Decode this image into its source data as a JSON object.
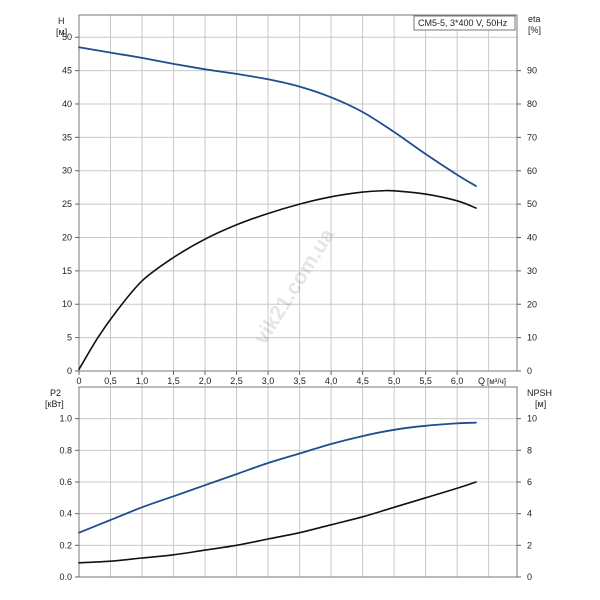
{
  "chart_data": [
    {
      "type": "line",
      "title": "CM5-5, 3*400 V, 50Hz",
      "left_axis": {
        "label": "H",
        "unit": "[м]",
        "range": [
          0,
          53.33
        ],
        "ticks": [
          "0",
          "5",
          "10",
          "15",
          "20",
          "25",
          "30",
          "35",
          "40",
          "45",
          "50"
        ]
      },
      "right_axis": {
        "label": "eta",
        "unit": "[%]",
        "range": [
          0,
          106.67
        ],
        "ticks": [
          "0",
          "10",
          "20",
          "30",
          "40",
          "50",
          "60",
          "70",
          "80",
          "90"
        ]
      },
      "x_axis": {
        "label": "Q",
        "unit": "[м³/ч]",
        "range": [
          0,
          6.95
        ],
        "ticks": [
          "0",
          "0,5",
          "1,0",
          "1,5",
          "2,0",
          "2,5",
          "3,0",
          "3,5",
          "4,0",
          "4,5",
          "5,0",
          "5,5",
          "6,0"
        ]
      },
      "grid": true,
      "watermark": "vik21.com.ua",
      "series": [
        {
          "axis": "left",
          "color": "#1f4e8c",
          "points": [
            [
              0,
              48.5
            ],
            [
              0.5,
              47.7
            ],
            [
              1.0,
              46.9
            ],
            [
              1.5,
              46.0
            ],
            [
              2.0,
              45.2
            ],
            [
              2.5,
              44.5
            ],
            [
              3.0,
              43.7
            ],
            [
              3.5,
              42.6
            ],
            [
              4.0,
              41.0
            ],
            [
              4.5,
              38.8
            ],
            [
              5.0,
              35.8
            ],
            [
              5.5,
              32.5
            ],
            [
              6.0,
              29.4
            ],
            [
              6.3,
              27.7
            ]
          ]
        },
        {
          "axis": "right",
          "color": "#111111",
          "points": [
            [
              0,
              0.5
            ],
            [
              0.3,
              10
            ],
            [
              0.6,
              18
            ],
            [
              1.0,
              27
            ],
            [
              1.5,
              34
            ],
            [
              2.0,
              39.5
            ],
            [
              2.5,
              43.8
            ],
            [
              3.0,
              47.2
            ],
            [
              3.5,
              50
            ],
            [
              4.0,
              52.2
            ],
            [
              4.5,
              53.6
            ],
            [
              4.8,
              54
            ],
            [
              5.0,
              54
            ],
            [
              5.5,
              53
            ],
            [
              6.0,
              51
            ],
            [
              6.3,
              48.8
            ]
          ]
        }
      ]
    },
    {
      "type": "line",
      "left_axis": {
        "label": "P2",
        "unit": "[кВт]",
        "range": [
          0,
          1.2
        ],
        "ticks": [
          "0.0",
          "0.2",
          "0.4",
          "0.6",
          "0.8",
          "1.0"
        ]
      },
      "right_axis": {
        "label": "NPSH",
        "unit": "[м]",
        "range": [
          0,
          12
        ],
        "ticks": [
          "0",
          "2",
          "4",
          "6",
          "8",
          "10"
        ]
      },
      "x_axis": {
        "range": [
          0,
          6.95
        ]
      },
      "grid": true,
      "series": [
        {
          "axis": "left",
          "color": "#1f4e8c",
          "points": [
            [
              0,
              0.28
            ],
            [
              0.5,
              0.36
            ],
            [
              1.0,
              0.44
            ],
            [
              1.5,
              0.51
            ],
            [
              2.0,
              0.58
            ],
            [
              2.5,
              0.65
            ],
            [
              3.0,
              0.72
            ],
            [
              3.5,
              0.78
            ],
            [
              4.0,
              0.84
            ],
            [
              4.5,
              0.89
            ],
            [
              5.0,
              0.93
            ],
            [
              5.5,
              0.955
            ],
            [
              6.0,
              0.97
            ],
            [
              6.3,
              0.975
            ]
          ]
        },
        {
          "axis": "right",
          "color": "#111111",
          "points": [
            [
              0,
              0.9
            ],
            [
              0.5,
              1.0
            ],
            [
              1.0,
              1.2
            ],
            [
              1.5,
              1.4
            ],
            [
              2.0,
              1.7
            ],
            [
              2.5,
              2.0
            ],
            [
              3.0,
              2.4
            ],
            [
              3.5,
              2.8
            ],
            [
              4.0,
              3.3
            ],
            [
              4.5,
              3.8
            ],
            [
              5.0,
              4.4
            ],
            [
              5.5,
              5.0
            ],
            [
              6.0,
              5.6
            ],
            [
              6.3,
              6.0
            ]
          ]
        }
      ]
    }
  ]
}
